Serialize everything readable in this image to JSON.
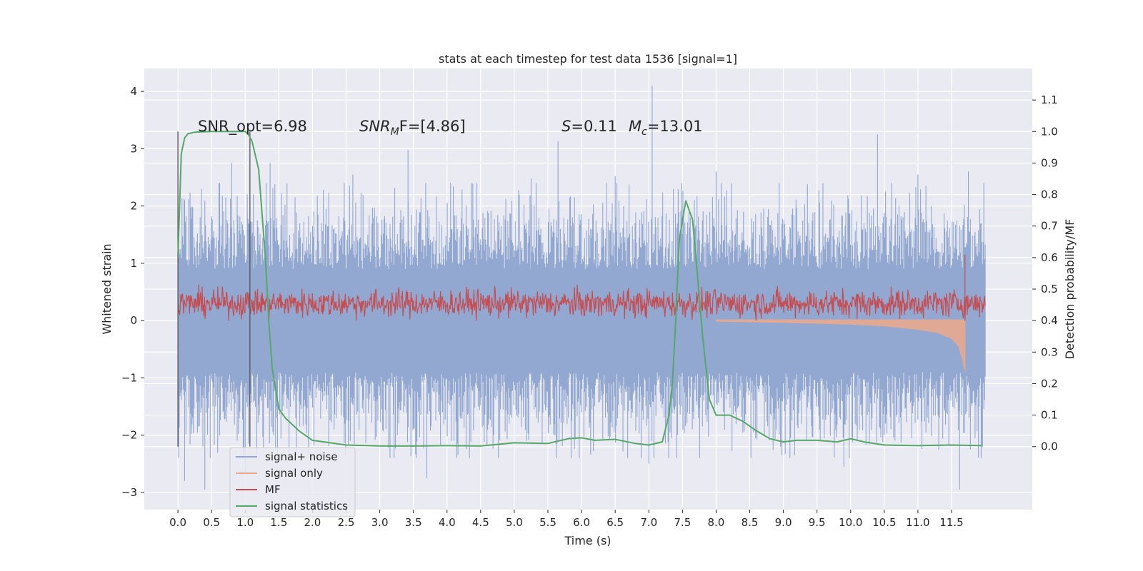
{
  "chart_data": {
    "type": "line",
    "title": "stats at each timestep for test data 1536 [signal=1]",
    "xlabel": "Time (s)",
    "ylabel": "Whitened strain",
    "y2label": "Detection probability/MF",
    "xlim": [
      -0.5,
      12.7
    ],
    "ylim": [
      -3.3,
      4.4
    ],
    "y2lim": [
      -0.2,
      1.2
    ],
    "xticks": [
      0.0,
      0.5,
      1.0,
      1.5,
      2.0,
      2.5,
      3.0,
      3.5,
      4.0,
      4.5,
      5.0,
      5.5,
      6.0,
      6.5,
      7.0,
      7.5,
      8.0,
      8.5,
      9.0,
      9.5,
      10.0,
      10.5,
      11.0,
      11.5
    ],
    "xtick_labels": [
      "0.0",
      "0.5",
      "1.0",
      "1.5",
      "2.0",
      "2.5",
      "3.0",
      "3.5",
      "4.0",
      "4.5",
      "5.0",
      "5.5",
      "6.0",
      "6.5",
      "7.0",
      "7.5",
      "8.0",
      "8.5",
      "9.0",
      "9.5",
      "10.0",
      "10.5",
      "11.0",
      "11.5"
    ],
    "yticks": [
      -3,
      -2,
      -1,
      0,
      1,
      2,
      3,
      4
    ],
    "ytick_labels": [
      "−3",
      "−2",
      "−1",
      "0",
      "1",
      "2",
      "3",
      "4"
    ],
    "y2ticks": [
      0.0,
      0.1,
      0.2,
      0.3,
      0.4,
      0.5,
      0.6,
      0.7,
      0.8,
      0.9,
      1.0,
      1.1
    ],
    "y2tick_labels": [
      "0.0",
      "0.1",
      "0.2",
      "0.3",
      "0.4",
      "0.5",
      "0.6",
      "0.7",
      "0.8",
      "0.9",
      "1.0",
      "1.1"
    ],
    "grid": true,
    "legend_position": "lower-left",
    "annotations": {
      "snr_opt": "SNR_opt=6.98",
      "snr_mf_sym": "SNR",
      "snr_mf_sub": "M",
      "snr_mf_rest": "F=[4.86]",
      "s_sym": "S",
      "s_val": "=0.11",
      "mc_sym": "M",
      "mc_sub": "c",
      "mc_val": "=13.01"
    },
    "markers": {
      "x": [
        0.0,
        1.07
      ]
    },
    "series": [
      {
        "name": "signal+ noise",
        "color": "#92a8d1",
        "axis": "left",
        "style": "dense noise trace",
        "duration": 12.0,
        "envelope_upper": 1.8,
        "envelope_lower": -1.9,
        "peaks": [
          [
            0.1,
            2.1
          ],
          [
            0.35,
            2.3
          ],
          [
            0.8,
            2.75
          ],
          [
            1.37,
            2.75
          ],
          [
            2.6,
            2.55
          ],
          [
            3.42,
            2.98
          ],
          [
            5.25,
            2.48
          ],
          [
            5.65,
            3.13
          ],
          [
            6.5,
            2.52
          ],
          [
            7.05,
            4.1
          ],
          [
            8.0,
            2.6
          ],
          [
            10.4,
            3.25
          ],
          [
            11.0,
            2.55
          ],
          [
            11.75,
            2.6
          ]
        ],
        "troughs": [
          [
            0.1,
            -2.8
          ],
          [
            0.4,
            -2.95
          ],
          [
            1.0,
            -2.65
          ],
          [
            3.7,
            -2.75
          ],
          [
            7.0,
            -2.5
          ],
          [
            9.9,
            -2.55
          ],
          [
            11.62,
            -2.95
          ]
        ]
      },
      {
        "name": "signal only",
        "color": "#e8a88e",
        "axis": "left",
        "style": "chirp",
        "x": [
          8.0,
          9.0,
          10.0,
          10.5,
          11.0,
          11.3,
          11.5,
          11.6,
          11.65,
          11.7
        ],
        "amplitude": [
          0.02,
          0.04,
          0.07,
          0.1,
          0.16,
          0.22,
          0.32,
          0.45,
          0.65,
          0.9
        ]
      },
      {
        "name": "MF",
        "color": "#c44e52",
        "axis": "left",
        "style": "dense trace",
        "duration": 12.0,
        "baseline": 0.3,
        "band": [
          0.0,
          0.65
        ],
        "spike": [
          11.7,
          1.15
        ]
      },
      {
        "name": "signal statistics",
        "color": "#55a868",
        "axis": "right",
        "style": "smooth line",
        "x": [
          0.0,
          0.05,
          0.1,
          0.15,
          0.25,
          0.5,
          1.0,
          1.05,
          1.1,
          1.2,
          1.3,
          1.35,
          1.4,
          1.5,
          1.6,
          1.8,
          2.0,
          2.5,
          3.0,
          3.5,
          4.0,
          4.5,
          5.0,
          5.5,
          5.8,
          6.0,
          6.2,
          6.5,
          6.8,
          7.0,
          7.2,
          7.3,
          7.35,
          7.4,
          7.45,
          7.5,
          7.55,
          7.6,
          7.65,
          7.7,
          7.8,
          7.9,
          8.0,
          8.2,
          8.4,
          8.6,
          8.8,
          9.0,
          9.2,
          9.5,
          9.8,
          10.0,
          10.2,
          10.5,
          11.0,
          11.5,
          11.95
        ],
        "y": [
          0.6,
          0.93,
          0.98,
          0.993,
          0.998,
          1.0,
          1.0,
          0.99,
          0.97,
          0.88,
          0.6,
          0.4,
          0.25,
          0.12,
          0.09,
          0.05,
          0.02,
          0.005,
          0.002,
          0.002,
          0.003,
          0.002,
          0.012,
          0.01,
          0.025,
          0.028,
          0.02,
          0.023,
          0.01,
          0.005,
          0.015,
          0.1,
          0.2,
          0.4,
          0.65,
          0.72,
          0.78,
          0.75,
          0.72,
          0.6,
          0.35,
          0.15,
          0.1,
          0.1,
          0.08,
          0.05,
          0.025,
          0.015,
          0.02,
          0.02,
          0.015,
          0.025,
          0.015,
          0.005,
          0.003,
          0.005,
          0.003
        ]
      }
    ]
  }
}
